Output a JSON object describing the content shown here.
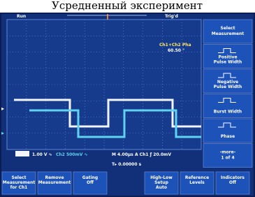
{
  "caption": "Усредненный эксперимент",
  "status": {
    "run": "Run",
    "trigger": "Trig'd"
  },
  "readout": {
    "label": "Ch1+Ch2 Pha",
    "value": "60.50 °"
  },
  "side_menu": [
    [
      "Select",
      "Measurement"
    ],
    [
      "Positive",
      "Pulse Width"
    ],
    [
      "Negative",
      "Pulse Width"
    ],
    [
      "Burst Width"
    ],
    [
      "Phase"
    ],
    [
      "-more-",
      "1 of 4"
    ]
  ],
  "scales": {
    "ch1": "1.00 V ∿",
    "ch2": "Ch2  500mV ∿",
    "time": "M 4.00µs  A  Ch1  ƒ  20.0mV",
    "position": "T▸ 0.00000 s"
  },
  "bottom_menu": [
    [
      "Select",
      "Measurement",
      "for Ch1"
    ],
    [
      "Remove",
      "Measurement"
    ],
    [
      "Gating",
      "Off"
    ],
    [
      "High-Low",
      "Setup",
      "Auto"
    ],
    [
      "Reference",
      "Levels"
    ],
    [
      "Indicators",
      "Off"
    ]
  ]
}
